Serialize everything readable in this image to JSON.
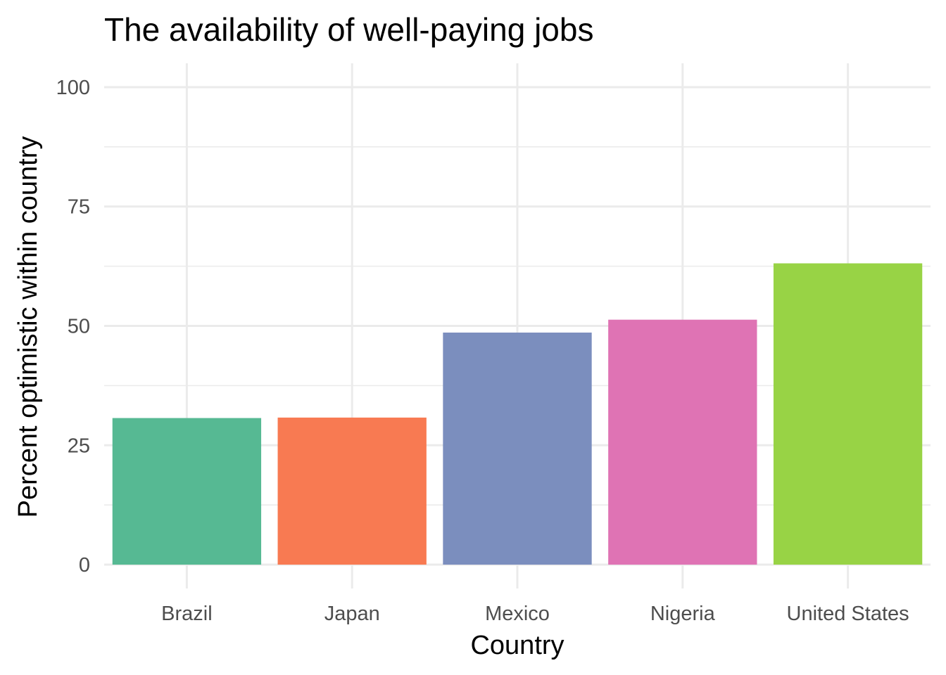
{
  "chart_data": {
    "type": "bar",
    "title": "The availability of well-paying jobs",
    "xlabel": "Country",
    "ylabel": "Percent optimistic within country",
    "categories": [
      "Brazil",
      "Japan",
      "Mexico",
      "Nigeria",
      "United States"
    ],
    "values": [
      30.7,
      30.8,
      48.6,
      51.3,
      63.1
    ],
    "colors": [
      "#56b993",
      "#f87a52",
      "#7b8ebe",
      "#df73b4",
      "#98d345"
    ],
    "ylim": [
      -5,
      105
    ],
    "yticks": [
      0,
      25,
      50,
      75,
      100
    ],
    "ytick_labels": [
      "0",
      "25",
      "50",
      "75",
      "100"
    ],
    "grid": true,
    "legend": "none"
  }
}
